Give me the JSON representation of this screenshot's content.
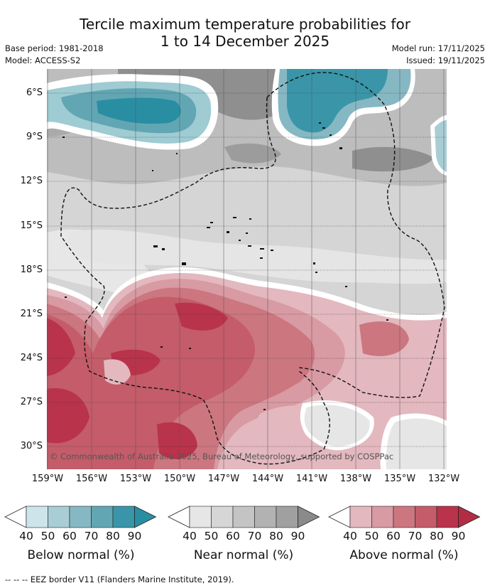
{
  "title": {
    "line1": "Tercile maximum temperature probabilities for",
    "line2": "1 to 14 December 2025"
  },
  "meta_left": {
    "base_period": "Base period: 1981-2018",
    "model": "Model: ACCESS-S2"
  },
  "meta_right": {
    "model_run": "Model run: 17/11/2025",
    "issued": "Issued: 19/11/2025"
  },
  "map": {
    "copyright": "© Commonwealth of Australia 2025, Bureau of Meteorology, supported by COSPPac",
    "lat_labels": [
      "6°S",
      "9°S",
      "12°S",
      "15°S",
      "18°S",
      "21°S",
      "24°S",
      "27°S",
      "30°S"
    ],
    "lon_labels": [
      "159°W",
      "156°W",
      "153°W",
      "150°W",
      "147°W",
      "144°W",
      "141°W",
      "138°W",
      "135°W",
      "132°W"
    ]
  },
  "colorbars": [
    {
      "label": "Below normal (%)",
      "ticks": [
        "40",
        "50",
        "60",
        "70",
        "80",
        "90"
      ],
      "colors": [
        "#cde4ea",
        "#a9cdd5",
        "#86b8c3",
        "#62a6b4",
        "#3a95a8",
        "#2a8ea3"
      ]
    },
    {
      "label": "Near normal (%)",
      "ticks": [
        "40",
        "50",
        "60",
        "70",
        "80",
        "90"
      ],
      "colors": [
        "#e6e6e6",
        "#d6d6d6",
        "#c4c4c4",
        "#b2b2b2",
        "#a0a0a0",
        "#8a8a8a"
      ]
    },
    {
      "label": "Above normal (%)",
      "ticks": [
        "40",
        "50",
        "60",
        "70",
        "80",
        "90"
      ],
      "colors": [
        "#e3b8bf",
        "#d89aa3",
        "#cc7680",
        "#c45c69",
        "#b9334a",
        "#b22d44"
      ]
    }
  ],
  "footer": "--  --  -- EEZ border V11 (Flanders Marine Institute, 2019)."
}
